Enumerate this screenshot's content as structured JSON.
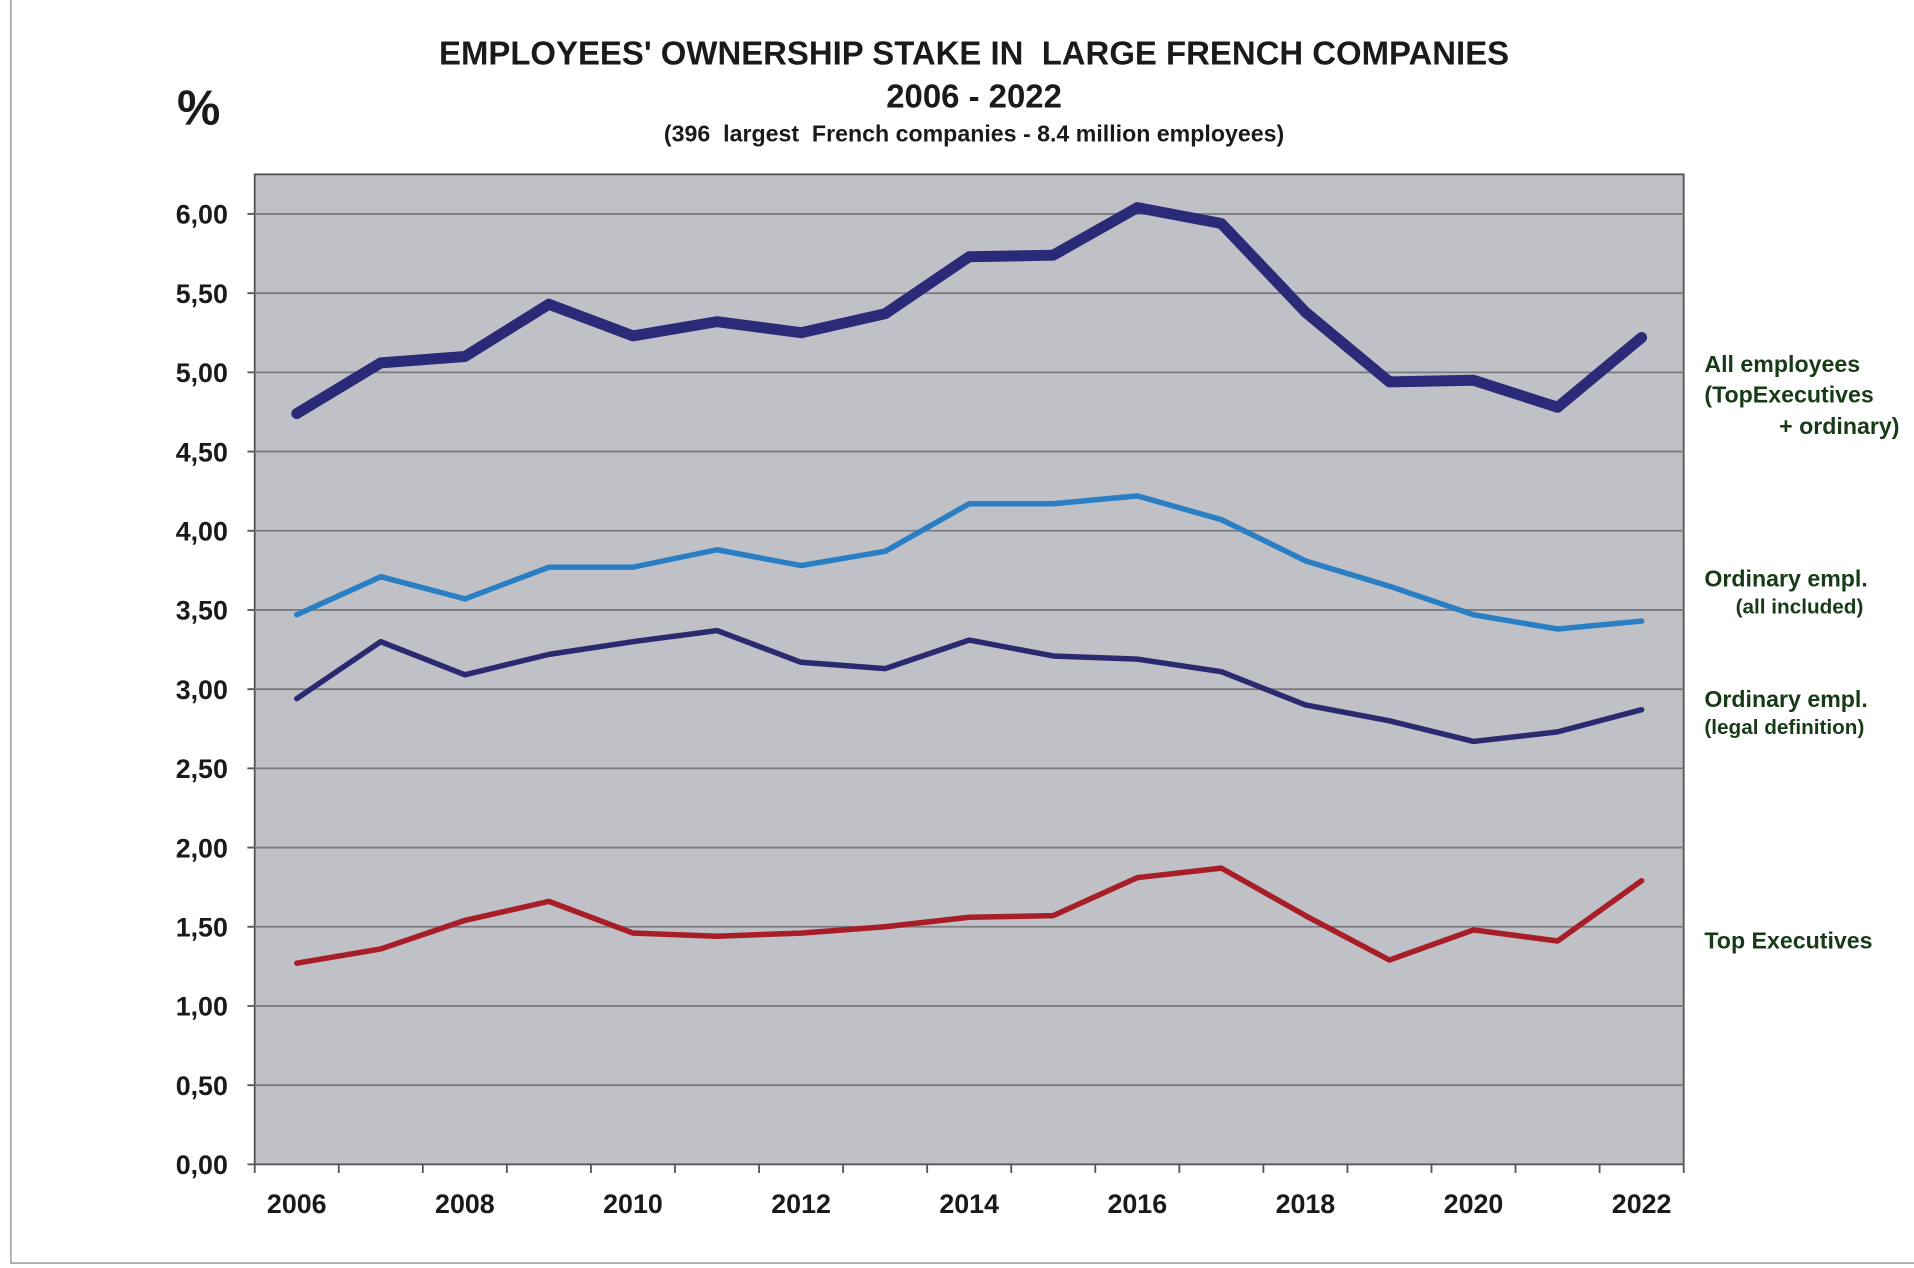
{
  "chart_data": {
    "type": "line",
    "title": "EMPLOYEES' OWNERSHIP STAKE IN  LARGE FRENCH COMPANIES",
    "subtitle": "2006 - 2022",
    "note": "(396  largest  French companies - 8.4 million employees)",
    "y_label": "%",
    "categories": [
      "2006",
      null,
      "2008",
      null,
      "2010",
      null,
      "2012",
      null,
      "2014",
      null,
      "2016",
      null,
      "2018",
      null,
      "2020",
      null,
      "2022"
    ],
    "ylim": [
      0,
      6.25
    ],
    "yticks": [
      {
        "value": 0,
        "label": "0,00"
      },
      {
        "value": 0.5,
        "label": "0,50"
      },
      {
        "value": 1,
        "label": "1,00"
      },
      {
        "value": 1.5,
        "label": "1,50"
      },
      {
        "value": 2,
        "label": "2,00"
      },
      {
        "value": 2.5,
        "label": "2,50"
      },
      {
        "value": 3,
        "label": "3,00"
      },
      {
        "value": 3.5,
        "label": "3,50"
      },
      {
        "value": 4,
        "label": "4,00"
      },
      {
        "value": 4.5,
        "label": "4,50"
      },
      {
        "value": 5,
        "label": "5,00"
      },
      {
        "value": 5.5,
        "label": "5,50"
      },
      {
        "value": 6,
        "label": "6,00"
      }
    ],
    "grid": true,
    "series": [
      {
        "name": [
          "All employees",
          "(TopExecutives",
          "+ ordinary)"
        ],
        "color": "#2b2a78",
        "width": 9,
        "values": [
          4.74,
          5.06,
          5.1,
          5.43,
          5.23,
          5.32,
          5.25,
          5.37,
          5.73,
          5.74,
          6.04,
          5.94,
          5.38,
          4.94,
          4.95,
          4.78,
          5.22
        ]
      },
      {
        "name": [
          "Ordinary empl.",
          "(all included)"
        ],
        "color": "#2a7fc4",
        "width": 4.5,
        "values": [
          3.47,
          3.71,
          3.57,
          3.77,
          3.77,
          3.88,
          3.78,
          3.87,
          4.17,
          4.17,
          4.22,
          4.07,
          3.81,
          3.65,
          3.47,
          3.38,
          3.43
        ]
      },
      {
        "name": [
          "Ordinary empl.",
          "(legal definition)"
        ],
        "color": "#2b2a70",
        "width": 4.5,
        "values": [
          2.94,
          3.3,
          3.09,
          3.22,
          3.3,
          3.37,
          3.17,
          3.13,
          3.31,
          3.21,
          3.19,
          3.11,
          2.9,
          2.8,
          2.67,
          2.73,
          2.87
        ]
      },
      {
        "name": [
          "Top Executives"
        ],
        "color": "#a81e28",
        "width": 4.5,
        "values": [
          1.27,
          1.36,
          1.54,
          1.66,
          1.46,
          1.44,
          1.46,
          1.5,
          1.56,
          1.57,
          1.81,
          1.87,
          1.57,
          1.29,
          1.48,
          1.41,
          1.79
        ]
      }
    ]
  }
}
